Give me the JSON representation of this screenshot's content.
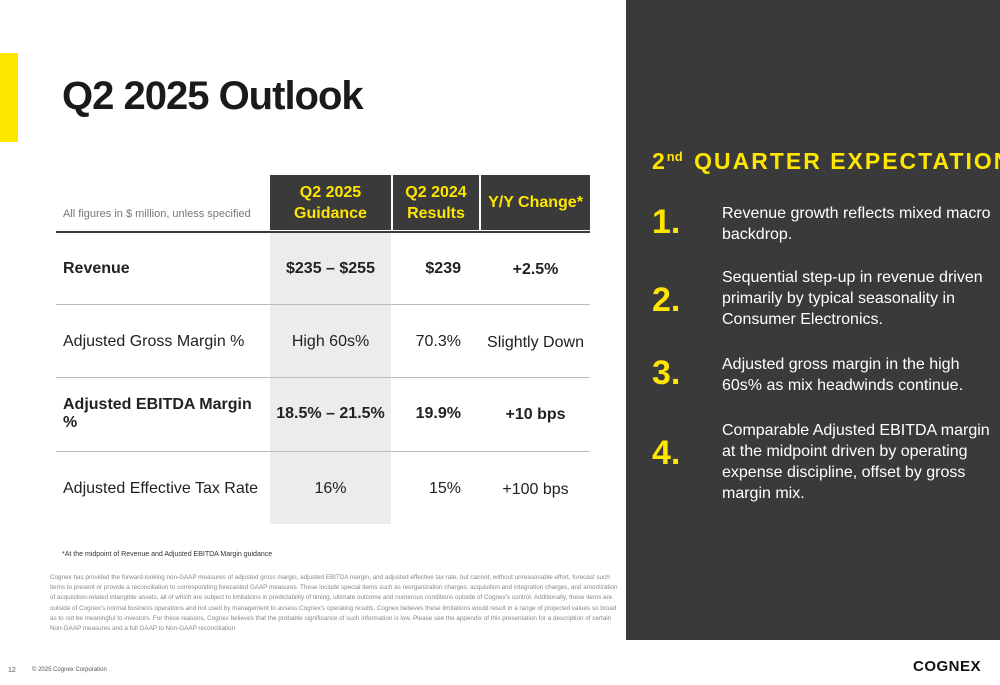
{
  "title": "Q2 2025 Outlook",
  "table": {
    "note": "All figures in $ million, unless specified",
    "headers": [
      "Q2 2025 Guidance",
      "Q2 2024 Results",
      "Y/Y Change*"
    ],
    "rows": [
      {
        "label": "Revenue",
        "guidance": "$235 – $255",
        "results": "$239",
        "change": "+2.5%"
      },
      {
        "label": "Adjusted Gross Margin %",
        "guidance": "High 60s%",
        "results": "70.3%",
        "change": "Slightly Down"
      },
      {
        "label": "Adjusted EBITDA Margin %",
        "guidance": "18.5% – 21.5%",
        "results": "19.9%",
        "change": "+10 bps"
      },
      {
        "label": "Adjusted Effective Tax Rate",
        "guidance": "16%",
        "results": "15%",
        "change": "+100 bps"
      }
    ]
  },
  "footnote": "*At the midpoint of Revenue and Adjusted EBITDA Margin guidance",
  "disclaimer": "Cognex has provided the forward-looking non-GAAP measures of adjusted gross margin, adjusted EBITDA margin, and adjusted effective tax rate, but cannot, without unreasonable effort, forecast such items to present or provide a reconciliation to corresponding forecasted GAAP measures. These include special items such as reorganization charges, acquisition and integration charges, and amortization of acquisition-related intangible assets, all of which are subject to limitations in predictability of timing, ultimate outcome and numerous conditions outside of Cognex's control. Additionally, these items are outside of Cognex's normal business operations and not used by management to assess Cognex's operating results. Cognex believes these limitations would result in a range of projected values so broad as to not be meaningful to investors. For these reasons, Cognex believes that the probable significance of such information is low. Please see the appendix of this presentation for a description of certain Non-GAAP measures and a full GAAP to Non-GAAP reconciliation",
  "expectations": {
    "heading_ordinal": "2",
    "heading_sup": "nd",
    "heading_rest": "QUARTER EXPECTATIONS",
    "items": [
      {
        "num": "1.",
        "text": "Revenue growth reflects mixed macro backdrop."
      },
      {
        "num": "2.",
        "text": "Sequential step-up in revenue driven primarily by typical seasonality in Consumer Electronics."
      },
      {
        "num": "3.",
        "text": "Adjusted gross margin in the high 60s% as mix headwinds continue."
      },
      {
        "num": "4.",
        "text": "Comparable Adjusted EBITDA margin at the midpoint driven by operating expense discipline, offset by gross margin mix."
      }
    ]
  },
  "page_number": "12",
  "copyright": "© 2025 Cognex Corporation",
  "logo": "COGNEX",
  "colors": {
    "accent": "#FFE600",
    "dark": "#3a3a3a"
  }
}
